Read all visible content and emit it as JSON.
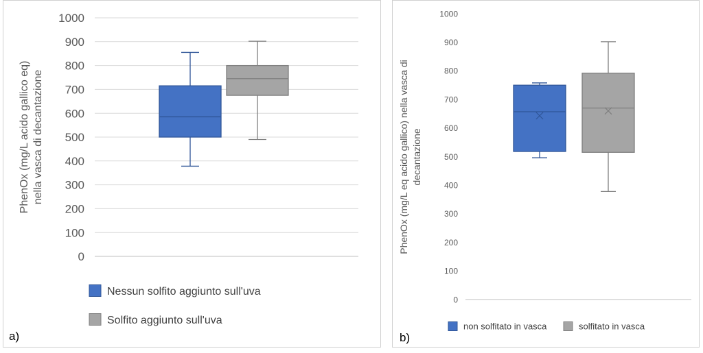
{
  "chart_data": [
    {
      "panel_label": "a)",
      "type": "box",
      "ylabel_lines": [
        "PhenOx (mg/L acido gallico eq)",
        "nella vasca di decantazione"
      ],
      "ylim": [
        0,
        1000
      ],
      "yticks": [
        0,
        100,
        200,
        300,
        400,
        500,
        600,
        700,
        800,
        900,
        1000
      ],
      "grid": true,
      "legend_position": "bottom",
      "series": [
        {
          "name": "Nessun solfito aggiunto sull'uva",
          "color": "#4472C4",
          "stroke": "#2F5597",
          "min": 378,
          "q1": 500,
          "median": 585,
          "q3": 715,
          "max": 855
        },
        {
          "name": "Solfito aggiunto sull'uva",
          "color": "#A5A5A5",
          "stroke": "#7F7F7F",
          "min": 490,
          "q1": 675,
          "median": 745,
          "q3": 800,
          "max": 902
        }
      ]
    },
    {
      "panel_label": "b)",
      "type": "box",
      "ylabel_lines": [
        "PhenOx (mg/L eq acido gallico) nella vasca di",
        "decantazione"
      ],
      "ylim": [
        0,
        1000
      ],
      "yticks": [
        0,
        100,
        200,
        300,
        400,
        500,
        600,
        700,
        800,
        900,
        1000
      ],
      "grid": false,
      "legend_position": "bottom",
      "series": [
        {
          "name": "non solfitato in vasca",
          "color": "#4472C4",
          "stroke": "#2F5597",
          "min": 496,
          "q1": 518,
          "median": 657,
          "q3": 750,
          "max": 758,
          "mean": 643
        },
        {
          "name": "solfitato in vasca",
          "color": "#A5A5A5",
          "stroke": "#7F7F7F",
          "min": 378,
          "q1": 515,
          "median": 670,
          "q3": 792,
          "max": 902,
          "mean": 660
        }
      ]
    }
  ]
}
